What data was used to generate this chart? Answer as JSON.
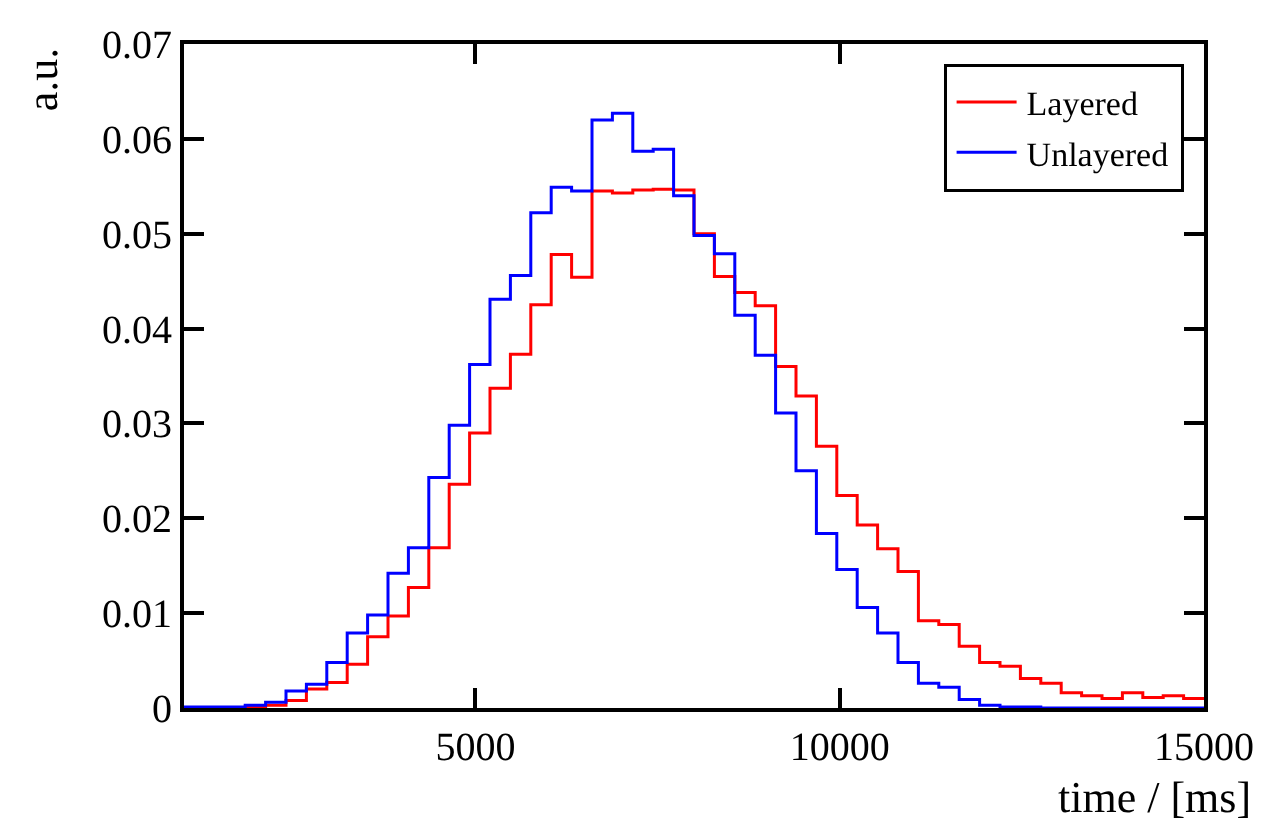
{
  "chart_data": {
    "type": "histogram",
    "xlabel": "time / [ms]",
    "ylabel": "a.u.",
    "bins": [
      1000,
      1280,
      1560,
      1840,
      2120,
      2400,
      2680,
      2960,
      3240,
      3520,
      3800,
      4080,
      4360,
      4640,
      4920,
      5200,
      5480,
      5760,
      6040,
      6320,
      6600,
      6880,
      7160,
      7440,
      7720,
      8000,
      8280,
      8560,
      8840,
      9120,
      9400,
      9680,
      9960,
      10240,
      10520,
      10800,
      11080,
      11360,
      11640,
      11920,
      12200,
      12480,
      12760,
      13040,
      13320,
      13600,
      13880,
      14160,
      14440,
      14720,
      15000
    ],
    "series": [
      {
        "name": "Layered",
        "color": "#ff0000",
        "values": [
          0,
          0,
          0,
          0.0001,
          0.0003,
          0.0008,
          0.002,
          0.0027,
          0.0046,
          0.0075,
          0.0097,
          0.0127,
          0.0169,
          0.0236,
          0.029,
          0.0337,
          0.0373,
          0.0425,
          0.0478,
          0.0454,
          0.0545,
          0.0543,
          0.0546,
          0.0547,
          0.0546,
          0.05,
          0.0455,
          0.0438,
          0.0424,
          0.036,
          0.0329,
          0.0276,
          0.0224,
          0.0193,
          0.0168,
          0.0144,
          0.0092,
          0.0088,
          0.0065,
          0.0048,
          0.0044,
          0.0031,
          0.0026,
          0.0016,
          0.0013,
          0.001,
          0.0016,
          0.0011,
          0.0013,
          0.001
        ]
      },
      {
        "name": "Unlayered",
        "color": "#0000ff",
        "values": [
          0.0001,
          0.0001,
          0.0001,
          0.0003,
          0.0006,
          0.0018,
          0.0025,
          0.0048,
          0.0079,
          0.0098,
          0.0142,
          0.0169,
          0.0243,
          0.0298,
          0.0362,
          0.0431,
          0.0456,
          0.0522,
          0.0549,
          0.0545,
          0.062,
          0.0627,
          0.0587,
          0.0589,
          0.054,
          0.0498,
          0.0479,
          0.0414,
          0.0372,
          0.0311,
          0.025,
          0.0184,
          0.0146,
          0.0106,
          0.0079,
          0.0048,
          0.0026,
          0.0022,
          0.0009,
          0.0003,
          0.0001,
          0.0001,
          0,
          0,
          0,
          0,
          0,
          0,
          0,
          0
        ]
      }
    ],
    "xlim": [
      1000,
      15000
    ],
    "xticks": [
      5000,
      10000,
      15000
    ],
    "ylim": [
      0,
      0.07
    ],
    "yticks": [
      0,
      0.01,
      0.02,
      0.03,
      0.04,
      0.05,
      0.06,
      0.07
    ],
    "legend": "top right"
  }
}
